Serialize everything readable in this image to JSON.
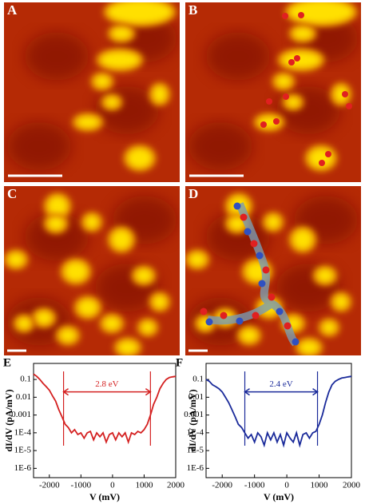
{
  "panels": {
    "labels": [
      "A",
      "B",
      "C",
      "D"
    ]
  },
  "chart_data": [
    {
      "type": "line",
      "panel": "E",
      "x_label": "V (mV)",
      "y_label": "dI/dV (pA/mV)",
      "log_y": true,
      "xlim": [
        -2500,
        2000
      ],
      "xticks": [
        -2000,
        -1000,
        0,
        1000,
        2000
      ],
      "ylim": [
        3e-07,
        0.8
      ],
      "yticks": [
        0.1,
        0.01,
        0.001,
        {
          "value": 0.0001,
          "label": "1E-4"
        },
        {
          "value": 1e-05,
          "label": "1E-5"
        },
        {
          "value": 1e-06,
          "label": "1E-6"
        }
      ],
      "annotation": {
        "text": "2.8 eV",
        "x_start": -1550,
        "x_end": 1200,
        "y": 0.02
      },
      "x": [
        -2500,
        -2400,
        -2300,
        -2200,
        -2100,
        -2000,
        -1900,
        -1800,
        -1700,
        -1600,
        -1500,
        -1400,
        -1300,
        -1200,
        -1100,
        -1000,
        -900,
        -800,
        -700,
        -600,
        -500,
        -400,
        -300,
        -200,
        -100,
        0,
        100,
        200,
        300,
        400,
        500,
        600,
        700,
        800,
        900,
        1000,
        1100,
        1200,
        1300,
        1400,
        1500,
        1600,
        1700,
        1800,
        1900,
        2000
      ],
      "series": [
        {
          "name": "spectrum",
          "color": "#d42020",
          "values": [
            0.2,
            0.15,
            0.1,
            0.06,
            0.04,
            0.025,
            0.012,
            0.006,
            0.002,
            0.0008,
            0.0003,
            0.0002,
            0.0001,
            0.00015,
            8e-05,
            0.0001,
            5e-05,
            0.0001,
            0.00012,
            4e-05,
            0.0001,
            6e-05,
            0.0001,
            3e-05,
            8e-05,
            0.0001,
            4e-05,
            0.0001,
            6e-05,
            0.0001,
            3e-05,
            0.0001,
            8e-05,
            0.00012,
            0.0001,
            0.00015,
            0.0003,
            0.001,
            0.004,
            0.01,
            0.03,
            0.06,
            0.1,
            0.13,
            0.14,
            0.15
          ]
        }
      ]
    },
    {
      "type": "line",
      "panel": "F",
      "x_label": "V (mV)",
      "y_label": "dI/dV (pA/mV)",
      "log_y": true,
      "xlim": [
        -2500,
        2000
      ],
      "xticks": [
        -2000,
        -1000,
        0,
        1000,
        2000
      ],
      "ylim": [
        3e-07,
        0.8
      ],
      "yticks": [
        0.1,
        0.01,
        0.001,
        {
          "value": 0.0001,
          "label": "1E-4"
        },
        {
          "value": 1e-05,
          "label": "1E-5"
        },
        {
          "value": 1e-06,
          "label": "1E-6"
        }
      ],
      "annotation": {
        "text": "2.4 eV",
        "x_start": -1300,
        "x_end": 950,
        "y": 0.02
      },
      "x": [
        -2500,
        -2400,
        -2300,
        -2200,
        -2100,
        -2000,
        -1900,
        -1800,
        -1700,
        -1600,
        -1500,
        -1400,
        -1300,
        -1200,
        -1100,
        -1000,
        -900,
        -800,
        -700,
        -600,
        -500,
        -400,
        -300,
        -200,
        -100,
        0,
        100,
        200,
        300,
        400,
        500,
        600,
        700,
        800,
        900,
        1000,
        1100,
        1200,
        1300,
        1400,
        1500,
        1600,
        1700,
        1800,
        1900,
        2000
      ],
      "series": [
        {
          "name": "spectrum",
          "color": "#1a2a9a",
          "values": [
            0.1,
            0.08,
            0.05,
            0.04,
            0.03,
            0.02,
            0.01,
            0.005,
            0.002,
            0.0008,
            0.0003,
            0.0002,
            0.0001,
            5e-05,
            8e-05,
            3e-05,
            0.0001,
            6e-05,
            2e-05,
            0.0001,
            4e-05,
            0.0001,
            3e-05,
            8e-05,
            2e-05,
            0.0001,
            5e-05,
            3e-05,
            0.0001,
            2e-05,
            8e-05,
            0.0001,
            5e-05,
            0.0001,
            0.00012,
            0.0003,
            0.001,
            0.005,
            0.02,
            0.05,
            0.08,
            0.1,
            0.12,
            0.13,
            0.14,
            0.15
          ]
        }
      ]
    }
  ]
}
